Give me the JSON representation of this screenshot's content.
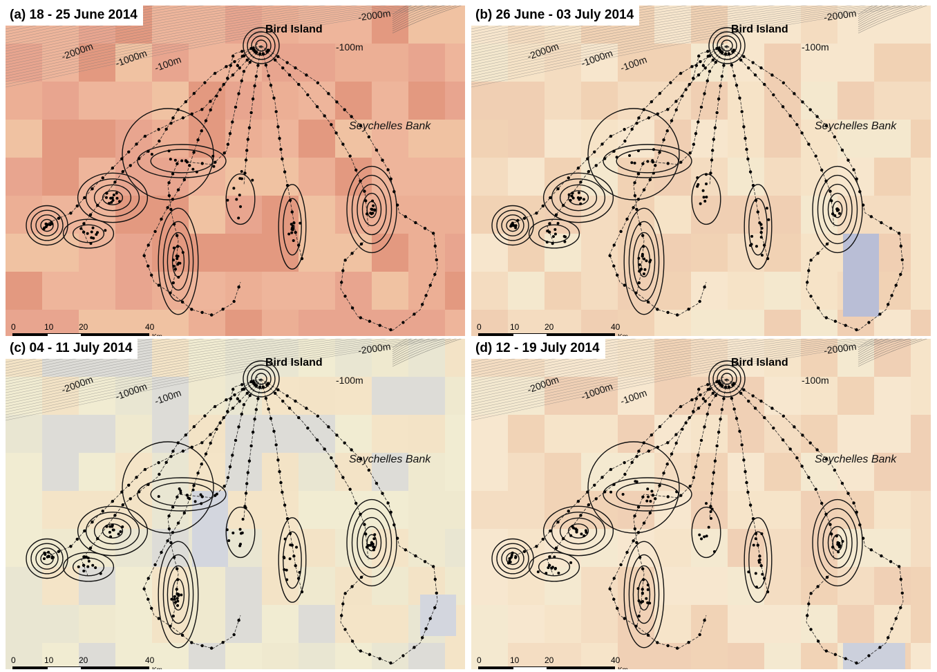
{
  "panels": [
    {
      "id": "a",
      "title": "(a) 18 - 25 June 2014",
      "tint": "#e8a690",
      "cells": "warm-strong"
    },
    {
      "id": "b",
      "title": "(b) 26 June - 03 July 2014",
      "tint": "#f3dcc0",
      "cells": "mild"
    },
    {
      "id": "c",
      "title": "(c) 04 - 11 July 2014",
      "tint": "#f1ecd2",
      "cells": "cool"
    },
    {
      "id": "d",
      "title": "(d) 12 - 19 July 2014",
      "tint": "#f3e4cc",
      "cells": "mild"
    }
  ],
  "labels": {
    "island": "Bird Island",
    "bank": "Seychelles Bank",
    "depth_2000_right": "-2000m",
    "depth_100_right": "-100m",
    "depth_2000_left": "-2000m",
    "depth_1000": "-1000m",
    "depth_100_left": "-100m"
  },
  "scale_bar": {
    "ticks": [
      "0",
      "10",
      "20",
      "40"
    ],
    "unit": "Km"
  },
  "colors": {
    "warm_strong": "#e59e87",
    "warm_mild": "#f2c9a6",
    "neutral": "#f1ecd3",
    "cool": "#c9cbd6",
    "contour": "#6b6b6b",
    "track": "#000000"
  }
}
